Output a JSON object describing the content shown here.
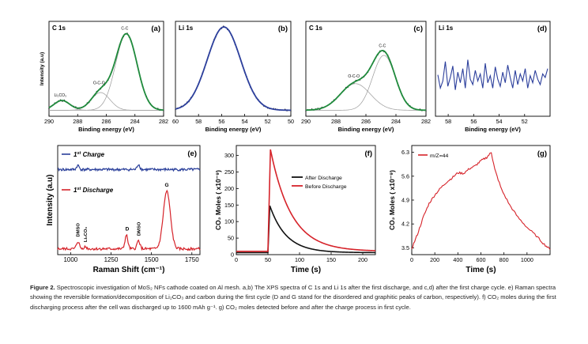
{
  "charts": {
    "a": {
      "type": "line",
      "panel_label": "(a)",
      "element_label": "C 1s",
      "xlabel": "Binding energy (eV)",
      "ylabel": "Intensity (a.u)",
      "xlim": [
        290,
        282
      ],
      "xticks": [
        "290",
        "288",
        "286",
        "284",
        "282"
      ],
      "xtick_values": [
        290,
        288,
        286,
        284,
        282
      ],
      "y_range": [
        0,
        1
      ],
      "peaks": [
        {
          "label": "Li₂CO₃",
          "center": 289.1,
          "amp": 0.11,
          "sigma": 0.55
        },
        {
          "label": "O-C-O",
          "center": 286.4,
          "amp": 0.2,
          "sigma": 0.65
        },
        {
          "label": "C-C",
          "center": 284.6,
          "amp": 0.86,
          "sigma": 0.75
        }
      ],
      "colors": {
        "envelope": "#1f8a3c",
        "components": "#9a9a9a",
        "data": "#222222"
      }
    },
    "b": {
      "type": "line",
      "panel_label": "(b)",
      "element_label": "Li 1s",
      "xlabel": "Binding energy (eV)",
      "xlim": [
        60,
        50
      ],
      "xticks": [
        "60",
        "58",
        "56",
        "54",
        "52",
        "50"
      ],
      "xtick_values": [
        60,
        58,
        56,
        54,
        52,
        50
      ],
      "y_range": [
        0,
        1
      ],
      "peaks": [
        {
          "label": "",
          "center": 55.8,
          "amp": 0.94,
          "sigma": 1.45
        }
      ],
      "colors": {
        "envelope": "#2c3f9c",
        "data": "#222222"
      }
    },
    "c": {
      "type": "line",
      "panel_label": "(c)",
      "element_label": "C 1s",
      "xlabel": "Binding energy (eV)",
      "xlim": [
        290,
        282
      ],
      "xticks": [
        "290",
        "288",
        "286",
        "284",
        "282"
      ],
      "xtick_values": [
        290,
        288,
        286,
        284,
        282
      ],
      "y_range": [
        0,
        1
      ],
      "peaks": [
        {
          "label": "O-C-O",
          "center": 286.7,
          "amp": 0.3,
          "sigma": 1.0
        },
        {
          "label": "C-C",
          "center": 284.8,
          "amp": 0.62,
          "sigma": 0.75
        }
      ],
      "colors": {
        "envelope": "#1f8a3c",
        "components": "#9a9a9a",
        "data": "#222222"
      }
    },
    "d": {
      "type": "line",
      "panel_label": "(d)",
      "element_label": "Li 1s",
      "xlabel": "Binding energy (eV)",
      "xlim": [
        59,
        50
      ],
      "xticks": [
        "58",
        "56",
        "54",
        "52"
      ],
      "xtick_values": [
        58,
        56,
        54,
        52
      ],
      "y_range": [
        0,
        1
      ],
      "noise": [
        0.45,
        0.3,
        0.38,
        0.6,
        0.32,
        0.42,
        0.55,
        0.28,
        0.48,
        0.36,
        0.52,
        0.3,
        0.62,
        0.4,
        0.34,
        0.5,
        0.38,
        0.46,
        0.3,
        0.58,
        0.36,
        0.44,
        0.3,
        0.54,
        0.4,
        0.32,
        0.48,
        0.36,
        0.56,
        0.42,
        0.3,
        0.5,
        0.34,
        0.46,
        0.38,
        0.52,
        0.3,
        0.44,
        0.36,
        0.5,
        0.4,
        0.34,
        0.46,
        0.42,
        0.52
      ],
      "colors": {
        "data": "#2c3f9c"
      }
    },
    "e": {
      "type": "line",
      "panel_label": "(e)",
      "xlabel": "Raman Shift (cm⁻¹)",
      "ylabel": "Intensity (a.u)",
      "xlim": [
        920,
        1800
      ],
      "xticks": [
        "1000",
        "1250",
        "1500",
        "1750"
      ],
      "xtick_values": [
        1000,
        1250,
        1500,
        1750
      ],
      "y_range": [
        0,
        1
      ],
      "series": [
        {
          "name": "1st Charge",
          "legend_main": "1",
          "legend_sup": "st",
          "legend_rest": " Charge",
          "color": "#2a3f9a",
          "offset": 0.8
        },
        {
          "name": "1st Discharge",
          "legend_main": "1",
          "legend_sup": "st",
          "legend_rest": " Discharge",
          "color": "#d6232a",
          "offset": 0.04
        }
      ],
      "discharge_peaks": [
        {
          "label": "DMSO",
          "center": 1045,
          "amp": 0.07
        },
        {
          "label": "Li₂CO₃",
          "center": 1090,
          "amp": 0.02
        },
        {
          "label": "D",
          "center": 1345,
          "amp": 0.13
        },
        {
          "label": "DMSO",
          "center": 1420,
          "amp": 0.08
        },
        {
          "label": "G",
          "center": 1595,
          "amp": 0.55
        }
      ]
    },
    "f": {
      "type": "line",
      "panel_label": "(f)",
      "xlabel": "Time (s)",
      "ylabel": "CO₂ Moles ( x10⁻⁹)",
      "xlim": [
        0,
        220
      ],
      "ylim": [
        0,
        330
      ],
      "xticks": [
        "0",
        "50",
        "100",
        "150",
        "200"
      ],
      "xtick_values": [
        0,
        50,
        100,
        150,
        200
      ],
      "yticks": [
        "0",
        "50",
        "100",
        "150",
        "200",
        "250",
        "300"
      ],
      "ytick_values": [
        0,
        50,
        100,
        150,
        200,
        250,
        300
      ],
      "series": [
        {
          "name": "After Discharge",
          "color": "#111111",
          "baseline": 6,
          "rise_x": 50,
          "peak_x": 53,
          "peak_y": 148,
          "decay": 26
        },
        {
          "name": "Before Discharge",
          "color": "#d6232a",
          "baseline": 10,
          "rise_x": 50,
          "peak_x": 54,
          "peak_y": 318,
          "decay": 33
        }
      ]
    },
    "g": {
      "type": "line",
      "panel_label": "(g)",
      "xlabel": "Time (s)",
      "ylabel": "CO₂ Moles ( x10⁻⁹)",
      "legend": "m/Z=44",
      "xlim": [
        0,
        1200
      ],
      "ylim": [
        3.3,
        6.5
      ],
      "xticks": [
        "0",
        "200",
        "400",
        "600",
        "800",
        "1000"
      ],
      "xtick_values": [
        0,
        200,
        400,
        600,
        800,
        1000
      ],
      "yticks": [
        "3.5",
        "4.2",
        "4.9",
        "5.6",
        "6.3"
      ],
      "ytick_values": [
        3.5,
        4.2,
        4.9,
        5.6,
        6.3
      ],
      "series": [
        {
          "name": "m/Z=44",
          "color": "#d6232a",
          "points": [
            [
              0,
              3.48
            ],
            [
              50,
              3.9
            ],
            [
              100,
              4.4
            ],
            [
              150,
              4.8
            ],
            [
              200,
              5.05
            ],
            [
              250,
              5.25
            ],
            [
              300,
              5.42
            ],
            [
              350,
              5.55
            ],
            [
              400,
              5.7
            ],
            [
              450,
              5.68
            ],
            [
              500,
              5.82
            ],
            [
              550,
              5.9
            ],
            [
              600,
              6.05
            ],
            [
              650,
              6.15
            ],
            [
              690,
              6.3
            ],
            [
              720,
              5.8
            ],
            [
              780,
              5.2
            ],
            [
              850,
              4.75
            ],
            [
              920,
              4.4
            ],
            [
              1000,
              4.1
            ],
            [
              1080,
              3.85
            ],
            [
              1150,
              3.6
            ],
            [
              1200,
              3.45
            ]
          ]
        }
      ]
    }
  },
  "caption": {
    "fig_label": "Figure 2.",
    "text": "Spectroscopic investigation of MoS₂ NFs cathode coated on Al mesh. a,b) The XPS spectra of C 1s and Li 1s after the first discharge, and c,d) after the first charge cycle. e) Raman spectra showing the reversible formation/decomposition of Li₂CO₃ and carbon during the first cycle (D and G stand for the disordered and graphitic peaks of carbon, respectively). f) CO₂ moles during the first discharging process after the cell was discharged up to 1600 mAh g⁻¹. g) CO₂ moles detected before and after the charge process in first cycle."
  }
}
